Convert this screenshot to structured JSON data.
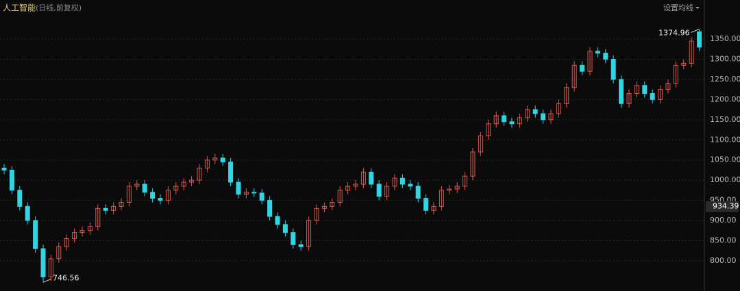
{
  "chart_data": {
    "type": "candlestick",
    "title": "人工智能",
    "subtitle": "(日线,前复权)",
    "button": "设置均线",
    "ylim": [
      725,
      1447
    ],
    "yticks": [
      {
        "value": 800,
        "label": "800.00"
      },
      {
        "value": 850,
        "label": "850.00"
      },
      {
        "value": 900,
        "label": "900.00"
      },
      {
        "value": 950,
        "label": "950.00"
      },
      {
        "value": 1000,
        "label": "1000.00"
      },
      {
        "value": 1050,
        "label": "1050.00"
      },
      {
        "value": 1100,
        "label": "1100.00"
      },
      {
        "value": 1150,
        "label": "1150.00"
      },
      {
        "value": 1200,
        "label": "1200.00"
      },
      {
        "value": 1250,
        "label": "1250.00"
      },
      {
        "value": 1300,
        "label": "1300.00"
      },
      {
        "value": 1350,
        "label": "1350.00"
      }
    ],
    "grid": true,
    "up_color": "#e0564c",
    "down_color": "#30d5e4",
    "price_marker": 934.39,
    "open": [
      1030,
      1025,
      975,
      935,
      900,
      830,
      760,
      805,
      835,
      855,
      870,
      875,
      885,
      930,
      925,
      935,
      945,
      985,
      990,
      970,
      955,
      950,
      975,
      985,
      995,
      1000,
      1030,
      1050,
      1055,
      1045,
      995,
      965,
      970,
      968,
      950,
      910,
      890,
      870,
      840,
      835,
      900,
      930,
      935,
      945,
      975,
      985,
      990,
      1020,
      990,
      960,
      985,
      1005,
      990,
      985,
      955,
      925,
      935,
      975,
      978,
      985,
      1010,
      1070,
      1110,
      1140,
      1160,
      1145,
      1140,
      1155,
      1175,
      1165,
      1150,
      1165,
      1190,
      1230,
      1285,
      1270,
      1320,
      1315,
      1300,
      1250,
      1190,
      1215,
      1235,
      1215,
      1200,
      1225,
      1240,
      1285,
      1290,
      1368
    ],
    "high": [
      1040,
      1035,
      985,
      945,
      910,
      840,
      815,
      845,
      865,
      880,
      885,
      895,
      940,
      940,
      945,
      955,
      995,
      1000,
      1000,
      980,
      965,
      985,
      995,
      1005,
      1010,
      1040,
      1060,
      1065,
      1065,
      1055,
      1005,
      980,
      980,
      978,
      960,
      920,
      900,
      880,
      850,
      910,
      940,
      945,
      955,
      985,
      995,
      1000,
      1030,
      1030,
      1000,
      995,
      1015,
      1015,
      1000,
      995,
      965,
      945,
      985,
      988,
      995,
      1020,
      1080,
      1120,
      1150,
      1170,
      1170,
      1155,
      1165,
      1185,
      1185,
      1175,
      1175,
      1200,
      1240,
      1295,
      1295,
      1330,
      1330,
      1325,
      1310,
      1260,
      1225,
      1245,
      1245,
      1225,
      1235,
      1250,
      1295,
      1300,
      1355,
      1374.96
    ],
    "low": [
      1015,
      965,
      925,
      890,
      820,
      746.56,
      750,
      795,
      825,
      845,
      860,
      865,
      875,
      915,
      915,
      925,
      935,
      975,
      960,
      945,
      940,
      940,
      965,
      975,
      985,
      990,
      1020,
      1040,
      1035,
      985,
      955,
      955,
      958,
      940,
      900,
      880,
      860,
      830,
      825,
      825,
      890,
      920,
      925,
      935,
      965,
      975,
      980,
      980,
      950,
      950,
      975,
      980,
      975,
      945,
      915,
      915,
      925,
      965,
      968,
      975,
      1000,
      1060,
      1100,
      1130,
      1135,
      1130,
      1130,
      1145,
      1155,
      1140,
      1140,
      1155,
      1180,
      1220,
      1260,
      1260,
      1305,
      1290,
      1240,
      1180,
      1180,
      1205,
      1205,
      1190,
      1190,
      1215,
      1230,
      1275,
      1280,
      1320
    ],
    "close": [
      1025,
      975,
      935,
      900,
      830,
      760,
      805,
      835,
      855,
      870,
      875,
      885,
      930,
      925,
      935,
      945,
      985,
      990,
      970,
      955,
      950,
      975,
      985,
      995,
      1000,
      1030,
      1050,
      1055,
      1045,
      995,
      965,
      970,
      968,
      950,
      910,
      890,
      870,
      840,
      835,
      900,
      930,
      935,
      945,
      975,
      985,
      990,
      1020,
      990,
      960,
      985,
      1005,
      990,
      985,
      955,
      925,
      935,
      975,
      978,
      985,
      1010,
      1070,
      1110,
      1140,
      1160,
      1145,
      1140,
      1155,
      1175,
      1165,
      1150,
      1165,
      1190,
      1230,
      1285,
      1270,
      1320,
      1315,
      1300,
      1250,
      1190,
      1215,
      1235,
      1215,
      1200,
      1225,
      1240,
      1285,
      1290,
      1345,
      1330
    ]
  }
}
